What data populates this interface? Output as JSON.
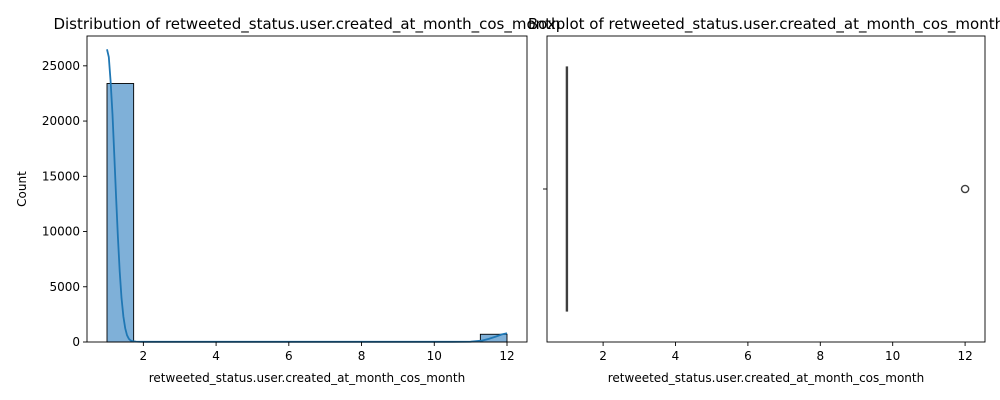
{
  "chart_data": [
    {
      "type": "bar",
      "subtype": "histogram-with-kde",
      "title": "Distribution of retweeted_status.user.created_at_month_cos_month",
      "xlabel": "retweeted_status.user.created_at_month_cos_month",
      "ylabel": "Count",
      "xlim": [
        0.45,
        12.55
      ],
      "ylim": [
        0,
        27700
      ],
      "xticks": [
        2,
        4,
        6,
        8,
        10,
        12
      ],
      "yticks": [
        0,
        5000,
        10000,
        15000,
        20000,
        25000
      ],
      "bar_color": "#7fb0d8",
      "line_color": "#1f77b4",
      "bins": [
        {
          "x0": 1.0,
          "x1": 1.733,
          "count": 23400
        },
        {
          "x0": 1.733,
          "x1": 2.467,
          "count": 0
        },
        {
          "x0": 2.467,
          "x1": 3.2,
          "count": 0
        },
        {
          "x0": 3.2,
          "x1": 3.933,
          "count": 0
        },
        {
          "x0": 3.933,
          "x1": 4.667,
          "count": 0
        },
        {
          "x0": 4.667,
          "x1": 5.4,
          "count": 0
        },
        {
          "x0": 5.4,
          "x1": 6.133,
          "count": 0
        },
        {
          "x0": 6.133,
          "x1": 6.867,
          "count": 0
        },
        {
          "x0": 6.867,
          "x1": 7.6,
          "count": 0
        },
        {
          "x0": 7.6,
          "x1": 8.333,
          "count": 0
        },
        {
          "x0": 8.333,
          "x1": 9.067,
          "count": 0
        },
        {
          "x0": 9.067,
          "x1": 9.8,
          "count": 0
        },
        {
          "x0": 9.8,
          "x1": 10.533,
          "count": 0
        },
        {
          "x0": 10.533,
          "x1": 11.267,
          "count": 0
        },
        {
          "x0": 11.267,
          "x1": 12.0,
          "count": 700
        }
      ],
      "kde": {
        "x": [
          1.0,
          1.05,
          1.1,
          1.15,
          1.2,
          1.25,
          1.3,
          1.35,
          1.4,
          1.45,
          1.5,
          1.55,
          1.6,
          1.65,
          1.7,
          1.8,
          2.0,
          3.0,
          5.0,
          7.0,
          9.0,
          10.5,
          11.0,
          11.3,
          11.5,
          11.7,
          11.85,
          12.0
        ],
        "y": [
          26500,
          25800,
          23600,
          20600,
          16900,
          13100,
          9500,
          6400,
          4000,
          2300,
          1250,
          620,
          300,
          140,
          80,
          40,
          20,
          15,
          15,
          15,
          15,
          15,
          30,
          120,
          280,
          500,
          680,
          800
        ]
      }
    },
    {
      "type": "box",
      "title": "Boxplot of retweeted_status.user.created_at_month_cos_month",
      "xlabel": "retweeted_status.user.created_at_month_cos_month",
      "xlim": [
        0.45,
        12.55
      ],
      "xticks": [
        2,
        4,
        6,
        8,
        10,
        12
      ],
      "box": {
        "q1": 1,
        "median": 1,
        "q3": 1,
        "whisker_low": 1,
        "whisker_high": 1
      },
      "outliers": [
        12
      ],
      "box_color": "#1f77b4"
    }
  ]
}
